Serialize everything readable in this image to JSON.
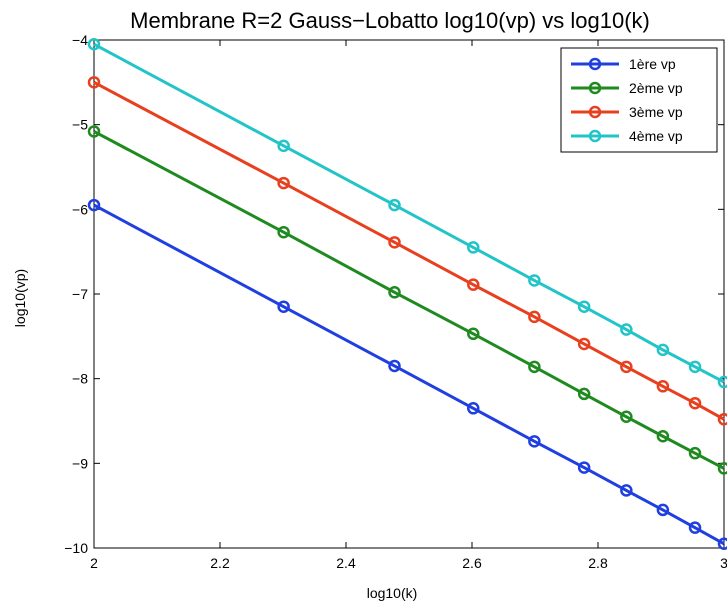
{
  "chart_data": {
    "type": "line",
    "title": "Membrane R=2 Gauss−Lobatto  log10(vp) vs log10(k)",
    "xlabel": "log10(k)",
    "ylabel": "log10(vp)",
    "xlim": [
      2,
      3
    ],
    "ylim": [
      -10,
      -4
    ],
    "x_ticks": [
      "2",
      "2.2",
      "2.4",
      "2.6",
      "2.8",
      "3"
    ],
    "y_ticks": [
      "−4",
      "−5",
      "−6",
      "−7",
      "−8",
      "−9",
      "−10"
    ],
    "grid": false,
    "legend_position": "top-right",
    "x": [
      2.0,
      2.301,
      2.477,
      2.602,
      2.699,
      2.778,
      2.845,
      2.903,
      2.954,
      3.0
    ],
    "series": [
      {
        "name": "1ère vp",
        "color": "#1f3fe0",
        "values": [
          -5.95,
          -7.15,
          -7.85,
          -8.35,
          -8.74,
          -9.05,
          -9.32,
          -9.55,
          -9.76,
          -9.95
        ]
      },
      {
        "name": "2ème vp",
        "color": "#1f8a1f",
        "values": [
          -5.08,
          -6.27,
          -6.98,
          -7.47,
          -7.86,
          -8.18,
          -8.45,
          -8.68,
          -8.88,
          -9.06
        ]
      },
      {
        "name": "3ème vp",
        "color": "#e8401f",
        "values": [
          -4.5,
          -5.69,
          -6.39,
          -6.89,
          -7.27,
          -7.59,
          -7.86,
          -8.09,
          -8.29,
          -8.48
        ]
      },
      {
        "name": "4ème vp",
        "color": "#22c4c8",
        "values": [
          -4.05,
          -5.25,
          -5.95,
          -6.45,
          -6.84,
          -7.15,
          -7.42,
          -7.66,
          -7.86,
          -8.04
        ]
      }
    ]
  }
}
